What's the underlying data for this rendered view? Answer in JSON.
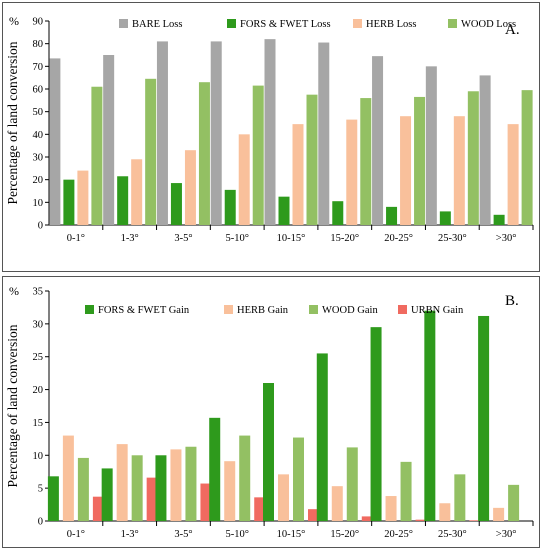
{
  "chart_data": [
    {
      "type": "bar",
      "panel_label": "A.",
      "ylabel": "Percentage of land conversion",
      "y_unit_label": "%",
      "ylim": [
        0,
        90
      ],
      "yticks": [
        0,
        10,
        20,
        30,
        40,
        50,
        60,
        70,
        80,
        90
      ],
      "categories": [
        "0-1°",
        "1-3°",
        "3-5°",
        "5-10°",
        "10-15°",
        "15-20°",
        "20-25°",
        "25-30°",
        ">30°"
      ],
      "legend_position": "top",
      "series": [
        {
          "name": "BARE Loss",
          "color": "#a6a6a6",
          "values": [
            73.5,
            75,
            81,
            81,
            82,
            80.5,
            74.5,
            70,
            66
          ]
        },
        {
          "name": "FORS & FWET  Loss",
          "color": "#2e9a1c",
          "values": [
            20,
            21.5,
            18.5,
            15.5,
            12.5,
            10.5,
            8,
            6,
            4.5
          ]
        },
        {
          "name": "HERB  Loss",
          "color": "#f9c09b",
          "values": [
            24,
            29,
            33,
            40,
            44.5,
            46.5,
            48,
            48,
            44.5
          ]
        },
        {
          "name": "WOOD  Loss",
          "color": "#93c063",
          "values": [
            61,
            64.5,
            63,
            61.5,
            57.5,
            56,
            56.5,
            59,
            59.5
          ]
        }
      ]
    },
    {
      "type": "bar",
      "panel_label": "B.",
      "ylabel": "Percentage of land conversion",
      "y_unit_label": "%",
      "ylim": [
        0,
        35
      ],
      "yticks": [
        0,
        5,
        10,
        15,
        20,
        25,
        30,
        35
      ],
      "categories": [
        "0-1°",
        "1-3°",
        "3-5°",
        "5-10°",
        "10-15°",
        "15-20°",
        "20-25°",
        "25-30°",
        ">30°"
      ],
      "legend_position": "top",
      "series": [
        {
          "name": "FORS & FWET Gain",
          "color": "#2e9a1c",
          "values": [
            6.8,
            8,
            10,
            15.7,
            21,
            25.5,
            29.5,
            32,
            31.2
          ]
        },
        {
          "name": "HERB Gain",
          "color": "#f9c09b",
          "values": [
            13,
            11.7,
            10.9,
            9.1,
            7.1,
            5.3,
            3.8,
            2.7,
            2
          ]
        },
        {
          "name": "WOOD Gain",
          "color": "#93c063",
          "values": [
            9.6,
            10,
            11.3,
            13,
            12.7,
            11.2,
            9,
            7.1,
            5.5
          ]
        },
        {
          "name": "URBN Gain",
          "color": "#f06a60",
          "values": [
            3.7,
            6.6,
            5.7,
            3.6,
            1.8,
            0.7,
            0.2,
            0.1,
            0
          ]
        }
      ]
    }
  ]
}
